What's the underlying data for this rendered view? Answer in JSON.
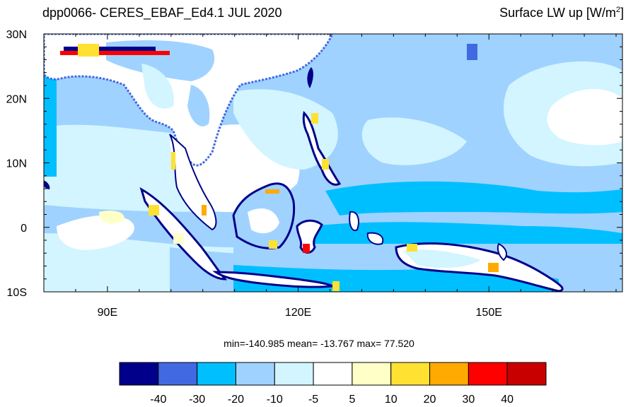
{
  "header": {
    "title_left": "dpp0066- CERES_EBAF_Ed4.1 JUL 2020",
    "title_right_main": "Surface LW up [W/m",
    "title_right_sup": "2",
    "title_right_end": "]"
  },
  "map": {
    "lon_range": [
      80,
      171
    ],
    "lat_range": [
      -10,
      30
    ],
    "lat_ticks": [
      {
        "lat": 30,
        "label": "30N"
      },
      {
        "lat": 20,
        "label": "20N"
      },
      {
        "lat": 10,
        "label": "10N"
      },
      {
        "lat": 0,
        "label": "0"
      },
      {
        "lat": -10,
        "label": "10S"
      }
    ],
    "lon_ticks": [
      {
        "lon": 90,
        "label": "90E"
      },
      {
        "lon": 120,
        "label": "120E"
      },
      {
        "lon": 150,
        "label": "150E"
      }
    ]
  },
  "stats": {
    "text": "min=-140.985  mean= -13.767  max=  77.520"
  },
  "colorbar": {
    "colors": [
      "#00008b",
      "#4169e1",
      "#00bfff",
      "#a0d2ff",
      "#d2f5ff",
      "#ffffff",
      "#ffffc8",
      "#ffe132",
      "#ffaa00",
      "#ff0000",
      "#c80000"
    ],
    "labels": [
      "-40",
      "-30",
      "-20",
      "-10",
      "-5",
      "5",
      "10",
      "20",
      "30",
      "40"
    ]
  }
}
